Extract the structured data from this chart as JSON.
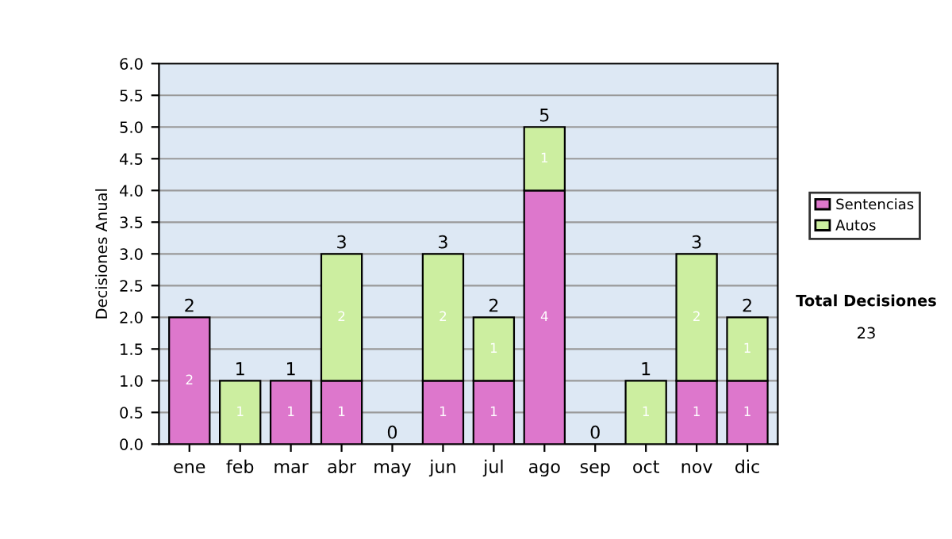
{
  "chart_data": {
    "type": "bar",
    "stacked": true,
    "ylabel": "Decisiones Anual",
    "categories": [
      "ene",
      "feb",
      "mar",
      "abr",
      "may",
      "jun",
      "jul",
      "ago",
      "sep",
      "oct",
      "nov",
      "dic"
    ],
    "series": [
      {
        "name": "Sentencias",
        "color": "#dd77cc",
        "values": [
          2,
          0,
          1,
          1,
          0,
          1,
          1,
          4,
          0,
          0,
          1,
          1
        ],
        "value_labels": [
          "2",
          null,
          "1",
          "1",
          null,
          "1",
          "1",
          "4",
          null,
          null,
          "1",
          "1"
        ]
      },
      {
        "name": "Autos",
        "color": "#cceea0",
        "values": [
          0,
          1,
          0,
          2,
          0,
          2,
          1,
          1,
          0,
          1,
          2,
          1
        ],
        "value_labels": [
          null,
          "1",
          null,
          "2",
          null,
          "2",
          "1",
          "1",
          null,
          "1",
          "2",
          "1"
        ]
      }
    ],
    "totals": [
      "2",
      "1",
      "1",
      "3",
      "0",
      "3",
      "2",
      "5",
      "0",
      "1",
      "3",
      "2"
    ],
    "ylim": [
      0,
      6
    ],
    "yticks": [
      {
        "value": 0,
        "label": "0.0"
      },
      {
        "value": 0.5,
        "label": "0.5"
      },
      {
        "value": 1,
        "label": "1.0"
      },
      {
        "value": 1.5,
        "label": "1.5"
      },
      {
        "value": 2,
        "label": "2.0"
      },
      {
        "value": 2.5,
        "label": "2.5"
      },
      {
        "value": 3,
        "label": "3.0"
      },
      {
        "value": 3.5,
        "label": "3.5"
      },
      {
        "value": 4,
        "label": "4.0"
      },
      {
        "value": 4.5,
        "label": "4.5"
      },
      {
        "value": 5,
        "label": "5.0"
      },
      {
        "value": 5.5,
        "label": "5.5"
      },
      {
        "value": 6,
        "label": "6.0"
      }
    ],
    "grid": "y",
    "legend": "right",
    "annotations": [
      "Total Decisiones",
      "23"
    ]
  }
}
